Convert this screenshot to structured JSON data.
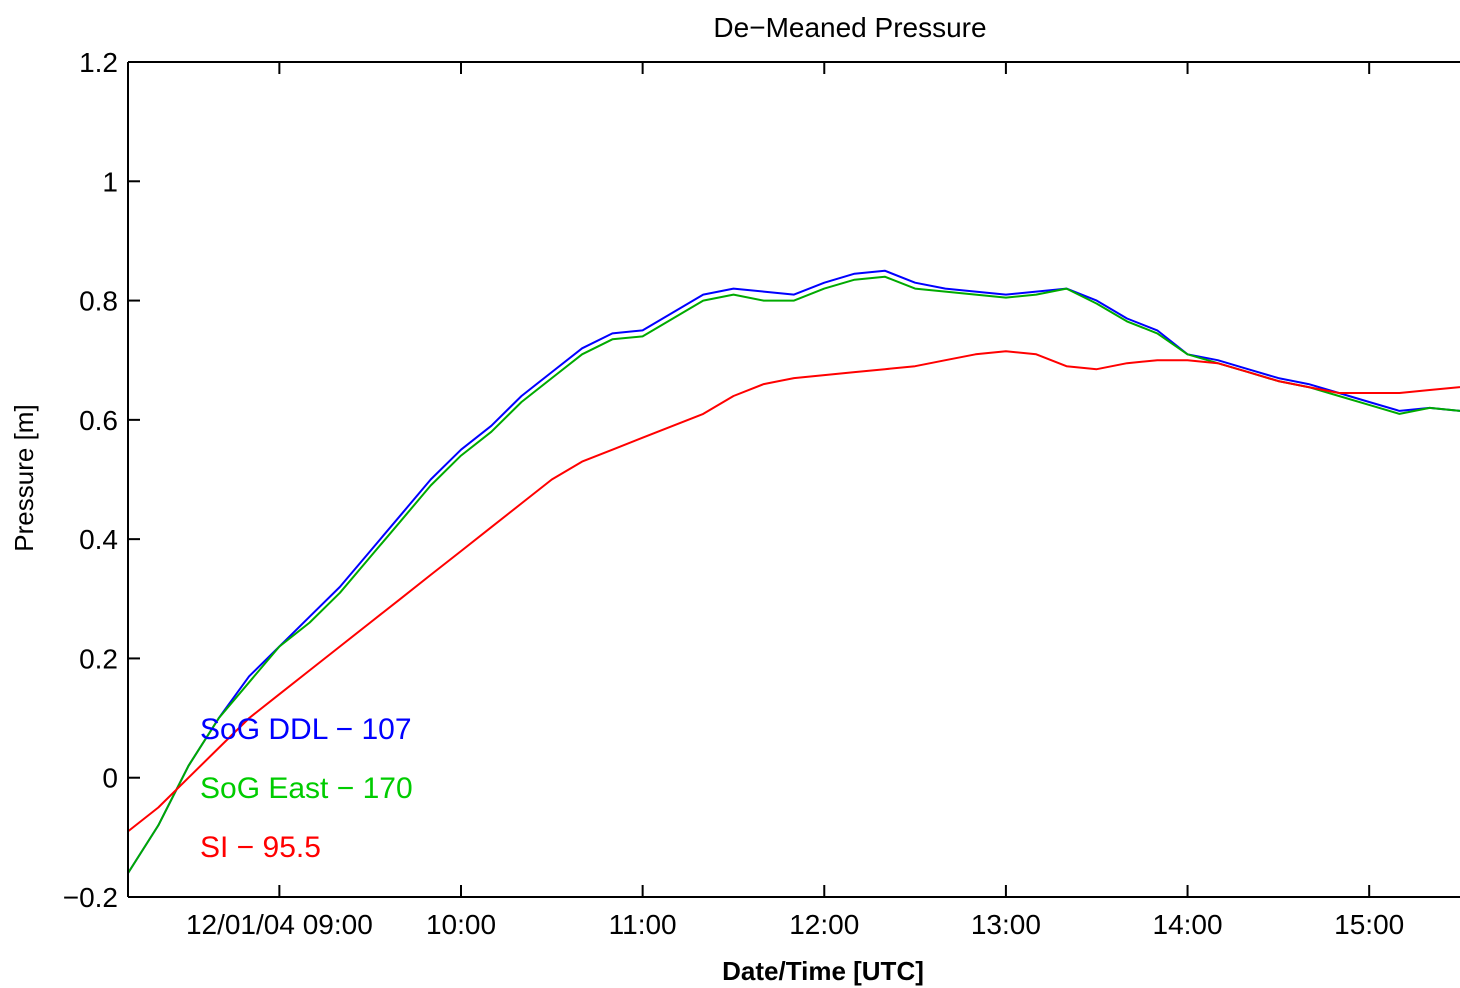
{
  "chart_data": {
    "type": "line",
    "title": "De−Meaned Pressure",
    "xlabel": "Date/Time [UTC]",
    "ylabel": "Pressure [m]",
    "xlim": [
      "12/01/04 08:10",
      "12/01/04 15:30"
    ],
    "ylim": [
      -0.2,
      1.2
    ],
    "x_ticks": [
      {
        "t": "12/01/04 09:00",
        "label": "12/01/04 09:00"
      },
      {
        "t": "12/01/04 10:00",
        "label": "10:00"
      },
      {
        "t": "12/01/04 11:00",
        "label": "11:00"
      },
      {
        "t": "12/01/04 12:00",
        "label": "12:00"
      },
      {
        "t": "12/01/04 13:00",
        "label": "13:00"
      },
      {
        "t": "12/01/04 14:00",
        "label": "14:00"
      },
      {
        "t": "12/01/04 15:00",
        "label": "15:00"
      }
    ],
    "y_ticks": [
      {
        "v": -0.2,
        "label": "−0.2"
      },
      {
        "v": 0,
        "label": "0"
      },
      {
        "v": 0.2,
        "label": "0.2"
      },
      {
        "v": 0.4,
        "label": "0.4"
      },
      {
        "v": 0.6,
        "label": "0.6"
      },
      {
        "v": 0.8,
        "label": "0.8"
      },
      {
        "v": 1.0,
        "label": "1"
      },
      {
        "v": 1.2,
        "label": "1.2"
      }
    ],
    "x": [
      "08:10",
      "08:20",
      "08:30",
      "08:40",
      "08:50",
      "09:00",
      "09:10",
      "09:20",
      "09:30",
      "09:40",
      "09:50",
      "10:00",
      "10:10",
      "10:20",
      "10:30",
      "10:40",
      "10:50",
      "11:00",
      "11:10",
      "11:20",
      "11:30",
      "11:40",
      "11:50",
      "12:00",
      "12:10",
      "12:20",
      "12:30",
      "12:40",
      "12:50",
      "13:00",
      "13:10",
      "13:20",
      "13:30",
      "13:40",
      "13:50",
      "14:00",
      "14:10",
      "14:20",
      "14:30",
      "14:40",
      "14:50",
      "15:00",
      "15:10",
      "15:20",
      "15:30"
    ],
    "series": [
      {
        "name": "SoG DDL − 107",
        "color": "#0000ff",
        "values": [
          -0.16,
          -0.08,
          0.02,
          0.1,
          0.17,
          0.22,
          0.27,
          0.32,
          0.38,
          0.44,
          0.5,
          0.55,
          0.59,
          0.64,
          0.68,
          0.72,
          0.745,
          0.75,
          0.78,
          0.81,
          0.82,
          0.815,
          0.81,
          0.83,
          0.845,
          0.85,
          0.83,
          0.82,
          0.815,
          0.81,
          0.815,
          0.82,
          0.8,
          0.77,
          0.75,
          0.71,
          0.7,
          0.685,
          0.67,
          0.66,
          0.645,
          0.63,
          0.615,
          0.62,
          0.615
        ]
      },
      {
        "name": "SoG East − 170",
        "color": "#00aa00",
        "values": [
          -0.16,
          -0.08,
          0.02,
          0.1,
          0.16,
          0.22,
          0.26,
          0.31,
          0.37,
          0.43,
          0.49,
          0.54,
          0.58,
          0.63,
          0.67,
          0.71,
          0.735,
          0.74,
          0.77,
          0.8,
          0.81,
          0.8,
          0.8,
          0.82,
          0.835,
          0.84,
          0.82,
          0.815,
          0.81,
          0.805,
          0.81,
          0.82,
          0.795,
          0.765,
          0.745,
          0.71,
          0.695,
          0.68,
          0.665,
          0.655,
          0.64,
          0.625,
          0.61,
          0.62,
          0.615
        ]
      },
      {
        "name": "SI − 95.5",
        "color": "#ff0000",
        "values": [
          -0.09,
          -0.05,
          0.0,
          0.05,
          0.1,
          0.14,
          0.18,
          0.22,
          0.26,
          0.3,
          0.34,
          0.38,
          0.42,
          0.46,
          0.5,
          0.53,
          0.55,
          0.57,
          0.59,
          0.61,
          0.64,
          0.66,
          0.67,
          0.675,
          0.68,
          0.685,
          0.69,
          0.7,
          0.71,
          0.715,
          0.71,
          0.69,
          0.685,
          0.695,
          0.7,
          0.7,
          0.695,
          0.68,
          0.665,
          0.655,
          0.645,
          0.645,
          0.645,
          0.65,
          0.655
        ]
      }
    ],
    "legend": {
      "placement": "lower-left",
      "entries": [
        {
          "label": "SoG DDL − 107",
          "color": "#0000ff"
        },
        {
          "label": "SoG East − 170",
          "color": "#00cc00"
        },
        {
          "label": "SI − 95.5",
          "color": "#ff0000"
        }
      ]
    },
    "grid": false
  }
}
